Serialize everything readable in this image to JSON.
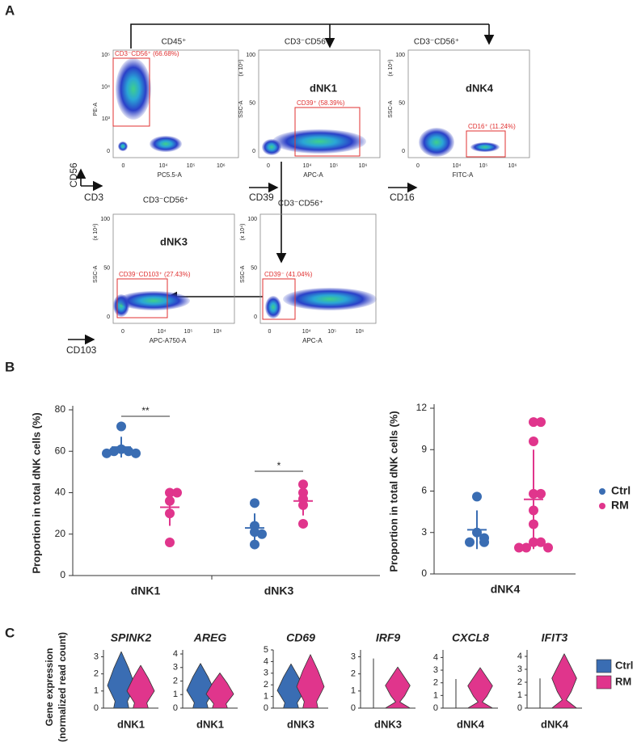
{
  "panel_labels": [
    "A",
    "B",
    "C"
  ],
  "panel_a": {
    "markers": [
      "CD56",
      "CD3",
      "CD39",
      "CD16",
      "CD103"
    ],
    "plots": [
      {
        "title": "CD45⁺",
        "gate": "CD3⁻CD56⁺ (66.68%)",
        "xlabel": "PC5.5-A",
        "ylabel": "PE-A",
        "xticks": [
          "0",
          "10⁴",
          "10⁵",
          "10⁶"
        ],
        "yticks": [
          "0",
          "10³",
          "10⁴",
          "10⁵"
        ]
      },
      {
        "title": "CD3⁻CD56⁺",
        "name": "dNK1",
        "gate": "CD39⁺ (58.39%)",
        "xlabel": "APC-A",
        "ylabel": "SSC-A",
        "yunit": "(x 10⁴)",
        "xticks": [
          "0",
          "10⁴",
          "10⁵",
          "10⁶"
        ],
        "yticks": [
          "0",
          "50",
          "100"
        ]
      },
      {
        "title": "CD3⁻CD56⁺",
        "name": "dNK4",
        "gate": "CD16⁺ (11.24%)",
        "xlabel": "FITC-A",
        "ylabel": "SSC-A",
        "yunit": "(x 10⁴)",
        "xticks": [
          "0",
          "10⁴",
          "10⁵",
          "10⁶"
        ],
        "yticks": [
          "0",
          "50",
          "100"
        ]
      },
      {
        "title": "CD3⁻CD56⁺",
        "name": "dNK3",
        "gate": "CD39⁻CD103⁺ (27.43%)",
        "xlabel": "APC-A750-A",
        "ylabel": "SSC-A",
        "yunit": "(x 10⁴)",
        "xticks": [
          "0",
          "10⁴",
          "10⁵",
          "10⁶"
        ],
        "yticks": [
          "0",
          "50",
          "100"
        ]
      },
      {
        "title": "CD3⁻CD56⁺",
        "gate": "CD39⁻ (41.04%)",
        "xlabel": "APC-A",
        "ylabel": "SSC-A",
        "yunit": "(x 10⁴)",
        "xticks": [
          "0",
          "10⁴",
          "10⁵",
          "10⁶"
        ],
        "yticks": [
          "0",
          "50",
          "100"
        ]
      }
    ]
  },
  "panel_c": {
    "ylabel": [
      "Gene expression",
      "(normalized read count)"
    ]
  },
  "chart_data": [
    {
      "type": "dot",
      "ylabel": "Proportion in total dNK cells (%)",
      "categories": [
        "dNK1",
        "dNK3"
      ],
      "ylim": [
        0,
        80
      ],
      "yticks": [
        0,
        20,
        40,
        60,
        80
      ],
      "series": [
        {
          "name": "Ctrl",
          "color": "#3a6db3",
          "values": [
            [
              72,
              61,
              60,
              60,
              59,
              59
            ],
            [
              35,
              24,
              21,
              20,
              15
            ]
          ],
          "mean": [
            62,
            23
          ],
          "error": [
            5,
            7
          ]
        },
        {
          "name": "RM",
          "color": "#e0358c",
          "values": [
            [
              40,
              40,
              36,
              30,
              16
            ],
            [
              44,
              40,
              37,
              34,
              25
            ]
          ],
          "mean": [
            33,
            36
          ],
          "error": [
            9,
            7
          ]
        }
      ],
      "annotations": [
        {
          "text": "**",
          "category": 0
        },
        {
          "text": "*",
          "category": 1
        }
      ]
    },
    {
      "type": "dot",
      "ylabel": "Proportion in total dNK cells (%)",
      "categories": [
        "dNK4"
      ],
      "ylim": [
        0,
        12
      ],
      "yticks": [
        0,
        3,
        6,
        9,
        12
      ],
      "legend": "right",
      "series": [
        {
          "name": "Ctrl",
          "color": "#3a6db3",
          "values": [
            [
              5.6,
              3.0,
              2.6,
              2.3,
              2.3
            ]
          ],
          "mean": [
            3.2
          ],
          "error": [
            1.4
          ]
        },
        {
          "name": "RM",
          "color": "#e0358c",
          "values": [
            [
              11,
              11,
              9.6,
              5.8,
              5.8,
              4.6,
              3.6,
              2.3,
              2.3,
              1.9,
              1.9,
              1.9
            ]
          ],
          "mean": [
            5.4
          ],
          "error": [
            3.6
          ]
        }
      ]
    },
    {
      "type": "violin",
      "title": "SPINK2",
      "categories": [
        "dNK1"
      ],
      "ylim": [
        0,
        3.4
      ],
      "yticks": [
        0,
        1,
        2,
        3
      ],
      "series": [
        {
          "name": "Ctrl",
          "color": "#3a6db3",
          "values": [
            3.3
          ]
        },
        {
          "name": "RM",
          "color": "#e0358c",
          "values": [
            2.5
          ]
        }
      ]
    },
    {
      "type": "violin",
      "title": "AREG",
      "categories": [
        "dNK1"
      ],
      "ylim": [
        0,
        4.3
      ],
      "yticks": [
        0,
        1,
        2,
        3,
        4
      ],
      "series": [
        {
          "name": "Ctrl",
          "color": "#3a6db3",
          "values": [
            3.3
          ]
        },
        {
          "name": "RM",
          "color": "#e0358c",
          "values": [
            2.6
          ]
        }
      ]
    },
    {
      "type": "violin",
      "title": "CD69",
      "categories": [
        "dNK3"
      ],
      "ylim": [
        0,
        5
      ],
      "yticks": [
        0,
        1,
        2,
        3,
        4,
        5
      ],
      "series": [
        {
          "name": "Ctrl",
          "color": "#3a6db3",
          "values": [
            3.8
          ]
        },
        {
          "name": "RM",
          "color": "#e0358c",
          "values": [
            4.6
          ]
        }
      ]
    },
    {
      "type": "violin",
      "title": "IRF9",
      "categories": [
        "dNK3"
      ],
      "ylim": [
        0,
        3.4
      ],
      "yticks": [
        0,
        1,
        2,
        3
      ],
      "series": [
        {
          "name": "Ctrl",
          "color": "#3a6db3",
          "values": [
            2.9
          ]
        },
        {
          "name": "RM",
          "color": "#e0358c",
          "values": [
            2.4
          ]
        }
      ]
    },
    {
      "type": "violin",
      "title": "CXCL8",
      "categories": [
        "dNK4"
      ],
      "ylim": [
        0,
        4.6
      ],
      "yticks": [
        0,
        1,
        2,
        3,
        4
      ],
      "series": [
        {
          "name": "Ctrl",
          "color": "#3a6db3",
          "values": [
            2.3
          ]
        },
        {
          "name": "RM",
          "color": "#e0358c",
          "values": [
            3.2
          ]
        }
      ]
    },
    {
      "type": "violin",
      "title": "IFIT3",
      "categories": [
        "dNK4"
      ],
      "ylim": [
        0,
        4.5
      ],
      "yticks": [
        0,
        1,
        2,
        3,
        4
      ],
      "legend": "right",
      "series": [
        {
          "name": "Ctrl",
          "color": "#3a6db3",
          "values": [
            2.3
          ]
        },
        {
          "name": "RM",
          "color": "#e0358c",
          "values": [
            4.2
          ]
        }
      ]
    }
  ]
}
